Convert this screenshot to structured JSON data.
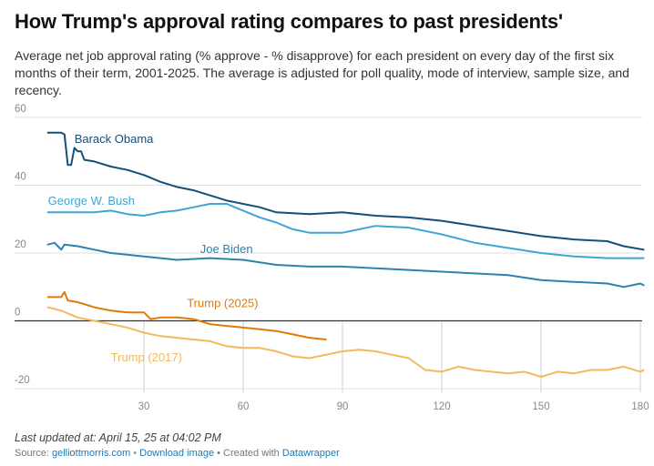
{
  "header": {
    "title": "How Trump's approval rating compares to past presidents'",
    "subtitle": "Average net job approval rating (% approve - % disapprove) for each president on every day of the first six months of their term, 2001-2025. The average is adjusted for poll quality, mode of interview, sample size, and recency."
  },
  "footer": {
    "updated": "Last updated at: April 15, 25 at 04:02 PM",
    "source_prefix": "Source: ",
    "source_link": "gelliottmorris.com",
    "separator": " • ",
    "download_label": "Download image",
    "created_text": " • Created with ",
    "created_link": "Datawrapper"
  },
  "chart_data": {
    "type": "line",
    "title": "How Trump's approval rating compares to past presidents'",
    "xlabel": "",
    "ylabel": "",
    "xlim": [
      0,
      180
    ],
    "ylim": [
      -20,
      60
    ],
    "x_ticks": [
      30,
      60,
      90,
      120,
      150,
      180
    ],
    "y_ticks": [
      60,
      40,
      20,
      0,
      -20
    ],
    "gridlines": true,
    "zero_line": true,
    "series": [
      {
        "name": "Barack Obama",
        "label": "Barack Obama",
        "color": "#12507a",
        "label_x": 9,
        "label_y": 52.5,
        "points": [
          [
            1,
            55.5
          ],
          [
            5,
            55.5
          ],
          [
            6,
            55
          ],
          [
            7,
            46
          ],
          [
            8,
            46
          ],
          [
            9,
            51
          ],
          [
            10,
            50
          ],
          [
            11,
            50
          ],
          [
            12,
            47.5
          ],
          [
            15,
            47
          ],
          [
            20,
            45.5
          ],
          [
            25,
            44.5
          ],
          [
            30,
            43
          ],
          [
            35,
            41
          ],
          [
            40,
            39.5
          ],
          [
            45,
            38.5
          ],
          [
            50,
            37
          ],
          [
            55,
            35.5
          ],
          [
            60,
            34.5
          ],
          [
            65,
            33.5
          ],
          [
            70,
            32
          ],
          [
            80,
            31.5
          ],
          [
            90,
            32
          ],
          [
            100,
            31
          ],
          [
            110,
            30.5
          ],
          [
            120,
            29.5
          ],
          [
            130,
            28
          ],
          [
            140,
            26.5
          ],
          [
            150,
            25
          ],
          [
            160,
            24
          ],
          [
            170,
            23.5
          ],
          [
            175,
            22
          ],
          [
            181,
            21
          ]
        ]
      },
      {
        "name": "George W. Bush",
        "label": "George W. Bush",
        "color": "#3ea6d4",
        "label_x": 1,
        "label_y": 34.2,
        "points": [
          [
            1,
            32
          ],
          [
            15,
            32
          ],
          [
            20,
            32.5
          ],
          [
            25,
            31.5
          ],
          [
            30,
            31
          ],
          [
            35,
            32
          ],
          [
            40,
            32.5
          ],
          [
            45,
            33.5
          ],
          [
            50,
            34.5
          ],
          [
            55,
            34.5
          ],
          [
            60,
            32.5
          ],
          [
            65,
            30.5
          ],
          [
            70,
            29
          ],
          [
            75,
            27
          ],
          [
            80,
            26
          ],
          [
            90,
            26
          ],
          [
            100,
            28
          ],
          [
            110,
            27.5
          ],
          [
            120,
            25.5
          ],
          [
            130,
            23
          ],
          [
            140,
            21.5
          ],
          [
            150,
            20
          ],
          [
            160,
            19
          ],
          [
            170,
            18.5
          ],
          [
            181,
            18.5
          ]
        ]
      },
      {
        "name": "Joe Biden",
        "label": "Joe Biden",
        "color": "#2d82ad",
        "label_x": 47,
        "label_y": 20,
        "points": [
          [
            1,
            22.5
          ],
          [
            3,
            23
          ],
          [
            4,
            22
          ],
          [
            5,
            21
          ],
          [
            6,
            22.5
          ],
          [
            10,
            22
          ],
          [
            15,
            21
          ],
          [
            20,
            20
          ],
          [
            30,
            19
          ],
          [
            40,
            18
          ],
          [
            50,
            18.5
          ],
          [
            60,
            18
          ],
          [
            70,
            16.5
          ],
          [
            80,
            16
          ],
          [
            90,
            16
          ],
          [
            100,
            15.5
          ],
          [
            110,
            15
          ],
          [
            120,
            14.5
          ],
          [
            130,
            14
          ],
          [
            140,
            13.5
          ],
          [
            150,
            12
          ],
          [
            160,
            11.5
          ],
          [
            170,
            11
          ],
          [
            175,
            10
          ],
          [
            180,
            11
          ],
          [
            181,
            10.5
          ]
        ]
      },
      {
        "name": "Trump (2025)",
        "label": "Trump (2025)",
        "color": "#e07b0a",
        "label_x": 43,
        "label_y": 4,
        "points": [
          [
            1,
            7
          ],
          [
            5,
            7
          ],
          [
            6,
            8.5
          ],
          [
            7,
            6
          ],
          [
            10,
            5.5
          ],
          [
            15,
            4
          ],
          [
            20,
            3
          ],
          [
            25,
            2.5
          ],
          [
            30,
            2.5
          ],
          [
            32,
            0.5
          ],
          [
            35,
            1
          ],
          [
            40,
            1
          ],
          [
            45,
            0.5
          ],
          [
            50,
            -1
          ],
          [
            55,
            -1.5
          ],
          [
            60,
            -2
          ],
          [
            65,
            -2.5
          ],
          [
            70,
            -3
          ],
          [
            75,
            -4
          ],
          [
            80,
            -5
          ],
          [
            85,
            -5.5
          ]
        ]
      },
      {
        "name": "Trump (2017)",
        "label": "Trump (2017)",
        "color": "#f3b95d",
        "label_x": 20,
        "label_y": -12,
        "points": [
          [
            1,
            4
          ],
          [
            5,
            3
          ],
          [
            10,
            1
          ],
          [
            15,
            0
          ],
          [
            20,
            -1
          ],
          [
            25,
            -2
          ],
          [
            30,
            -3.5
          ],
          [
            35,
            -4.5
          ],
          [
            40,
            -5
          ],
          [
            45,
            -5.5
          ],
          [
            50,
            -6
          ],
          [
            55,
            -7.5
          ],
          [
            60,
            -8
          ],
          [
            65,
            -8
          ],
          [
            70,
            -9
          ],
          [
            75,
            -10.5
          ],
          [
            80,
            -11
          ],
          [
            85,
            -10
          ],
          [
            90,
            -9
          ],
          [
            95,
            -8.5
          ],
          [
            100,
            -9
          ],
          [
            105,
            -10
          ],
          [
            110,
            -11
          ],
          [
            115,
            -14.5
          ],
          [
            120,
            -15
          ],
          [
            125,
            -13.5
          ],
          [
            130,
            -14.5
          ],
          [
            135,
            -15
          ],
          [
            140,
            -15.5
          ],
          [
            145,
            -15
          ],
          [
            150,
            -16.5
          ],
          [
            155,
            -15
          ],
          [
            160,
            -15.5
          ],
          [
            165,
            -14.5
          ],
          [
            170,
            -14.5
          ],
          [
            175,
            -13.5
          ],
          [
            180,
            -15
          ],
          [
            181,
            -14.5
          ]
        ]
      }
    ]
  }
}
